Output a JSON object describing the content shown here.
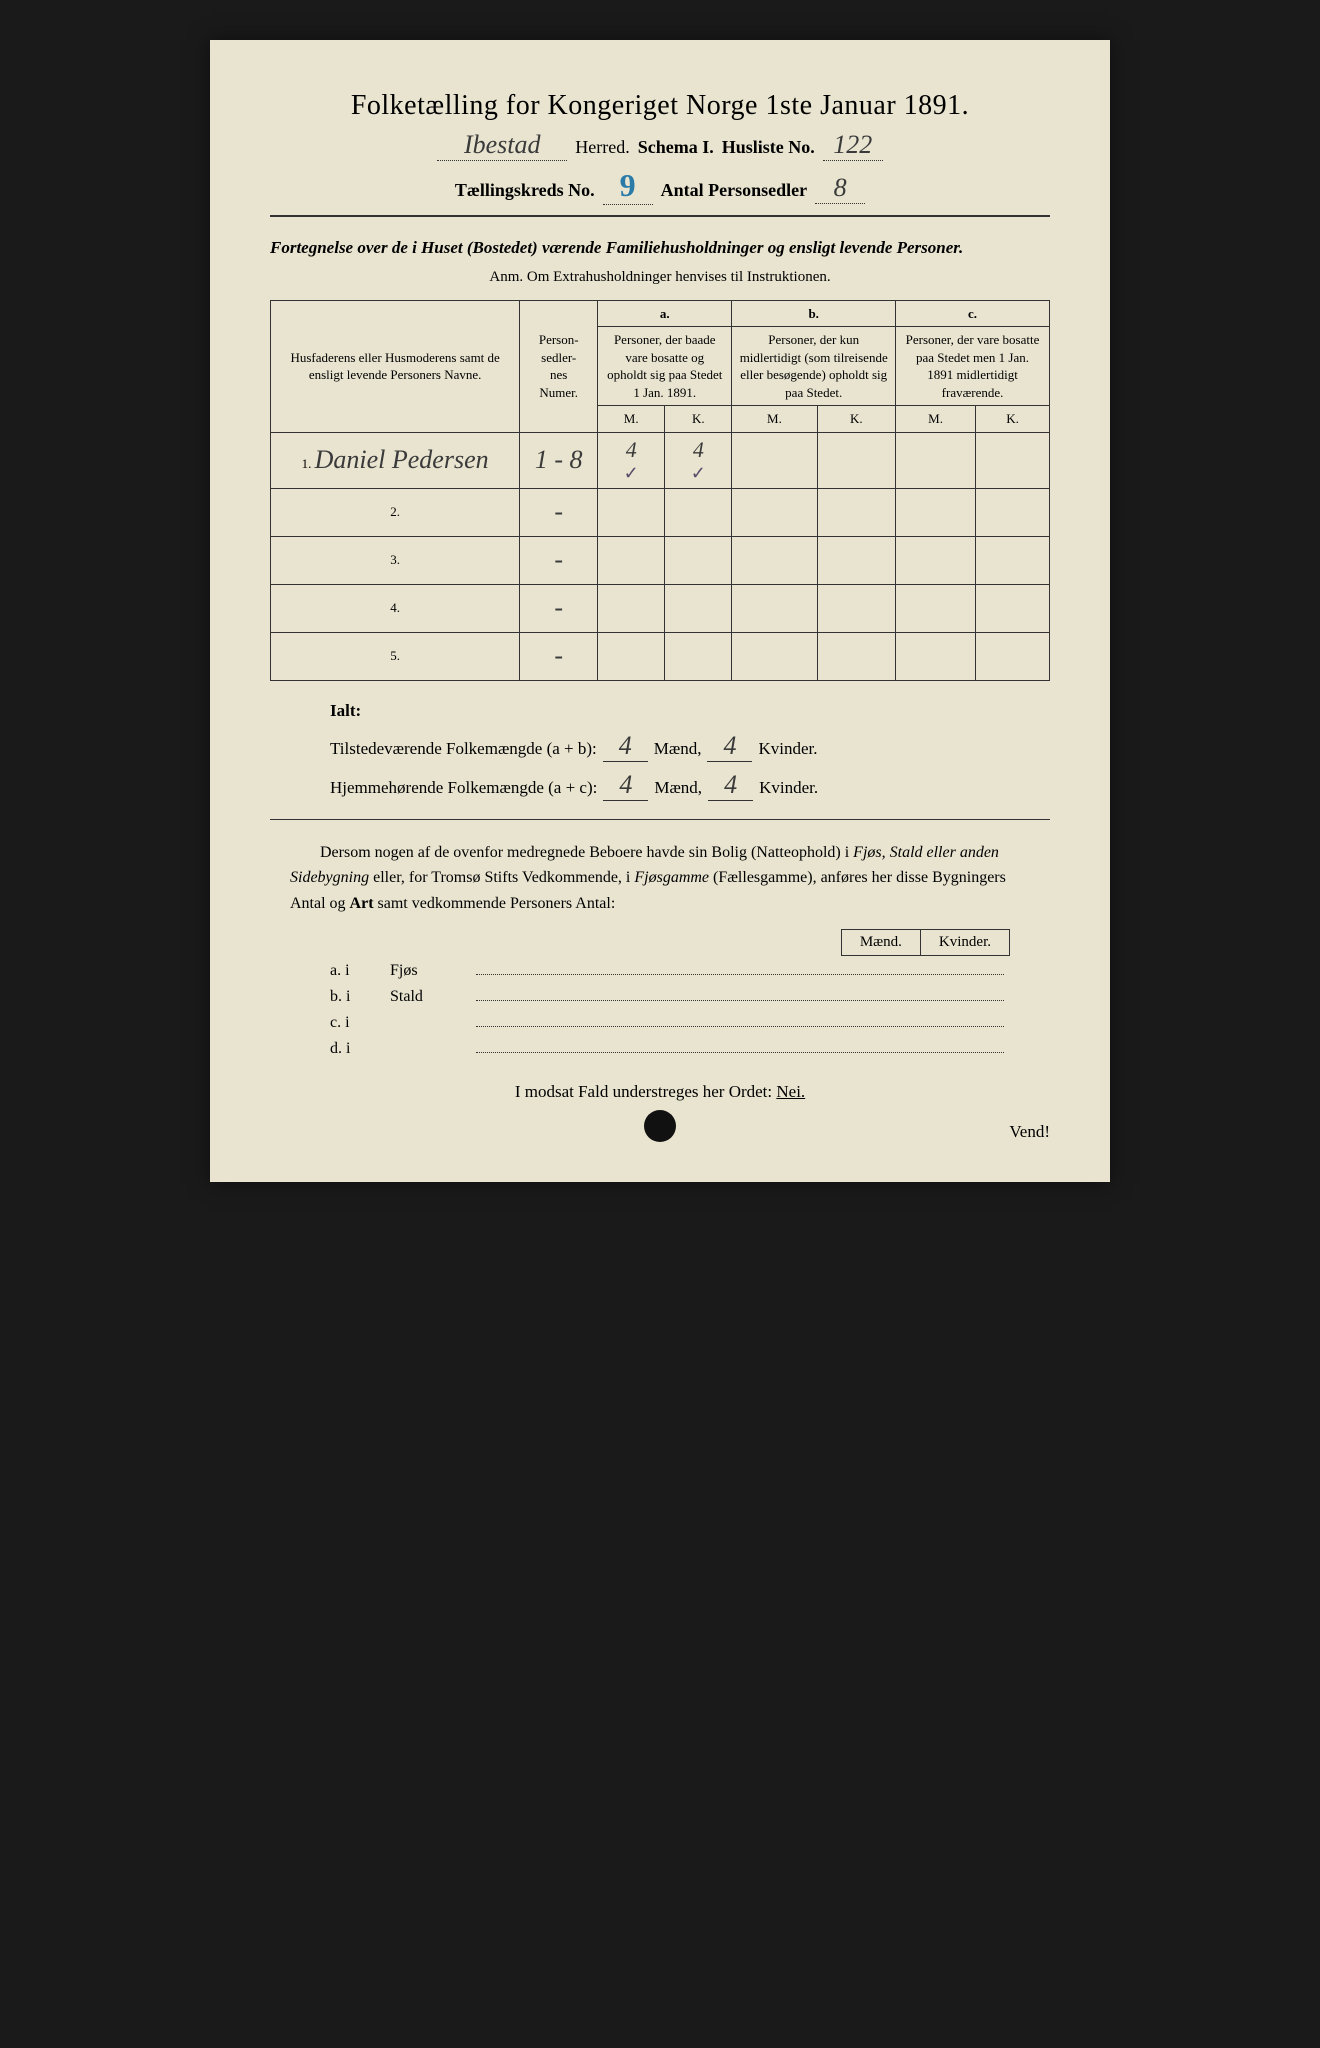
{
  "title": "Folketælling for Kongeriget Norge 1ste Januar 1891.",
  "header": {
    "herred": "Ibestad",
    "herred_label": "Herred.",
    "schema_label": "Schema I.",
    "husliste_label": "Husliste No.",
    "husliste_no": "122",
    "kreds_label": "Tællingskreds No.",
    "kreds_no": "9",
    "antal_label": "Antal Personsedler",
    "antal": "8"
  },
  "subtitle": "Fortegnelse over de i Huset (Bostedet) værende Familiehusholdninger og ensligt levende Personer.",
  "anm": "Anm.  Om Extrahusholdninger henvises til Instruktionen.",
  "table": {
    "col_name": "Husfaderens eller Husmoderens samt de ensligt levende Personers Navne.",
    "col_num": "Person-\nsedler-\nnes\nNumer.",
    "col_a_label": "a.",
    "col_a": "Personer, der baade vare bosatte og opholdt sig paa Stedet 1 Jan. 1891.",
    "col_b_label": "b.",
    "col_b": "Personer, der kun midlertidigt (som tilreisende eller besøgende) opholdt sig paa Stedet.",
    "col_c_label": "c.",
    "col_c": "Personer, der vare bosatte paa Stedet men 1 Jan. 1891 midlertidigt fraværende.",
    "m": "M.",
    "k": "K.",
    "rows": [
      {
        "n": "1.",
        "name": "Daniel Pedersen",
        "num": "1 - 8",
        "a_m": "4",
        "a_k": "4",
        "a_m_tick": "✓",
        "a_k_tick": "✓"
      },
      {
        "n": "2.",
        "name": "",
        "num": "-",
        "a_m": "",
        "a_k": ""
      },
      {
        "n": "3.",
        "name": "",
        "num": "-",
        "a_m": "",
        "a_k": ""
      },
      {
        "n": "4.",
        "name": "",
        "num": "-",
        "a_m": "",
        "a_k": ""
      },
      {
        "n": "5.",
        "name": "",
        "num": "-",
        "a_m": "",
        "a_k": ""
      }
    ]
  },
  "ialt": {
    "label": "Ialt:",
    "line1_pre": "Tilstedeværende Folkemængde (a + b):",
    "line1_m": "4",
    "line1_mlabel": "Mænd,",
    "line1_k": "4",
    "line1_klabel": "Kvinder.",
    "line2_pre": "Hjemmehørende Folkemængde (a + c):",
    "line2_m": "4",
    "line2_k": "4"
  },
  "paragraph": {
    "text_pre": "Dersom nogen af de ovenfor medregnede Beboere havde sin Bolig (Natteophold) i ",
    "it1": "Fjøs, Stald eller anden Sidebygning",
    "text_mid": " eller, for Tromsø Stifts Vedkommende, i ",
    "it2": "Fjøsgamme",
    "text_post": " (Fællesgamme), anføres her disse Bygningers Antal og ",
    "bold": "Art",
    "text_end": " samt vedkommende Personers Antal:"
  },
  "mk": {
    "m": "Mænd.",
    "k": "Kvinder."
  },
  "buildings": [
    {
      "label": "a.  i",
      "name": "Fjøs"
    },
    {
      "label": "b.  i",
      "name": "Stald"
    },
    {
      "label": "c.  i",
      "name": ""
    },
    {
      "label": "d.  i",
      "name": ""
    }
  ],
  "nei": {
    "pre": "I modsat Fald understreges her Ordet: ",
    "word": "Nei."
  },
  "vend": "Vend!",
  "colors": {
    "paper": "#e8e4d0",
    "ink": "#2a2a2a",
    "handwriting": "#3a3a3a",
    "blue_pencil": "#2a7ba8",
    "background": "#1a1a1a"
  }
}
